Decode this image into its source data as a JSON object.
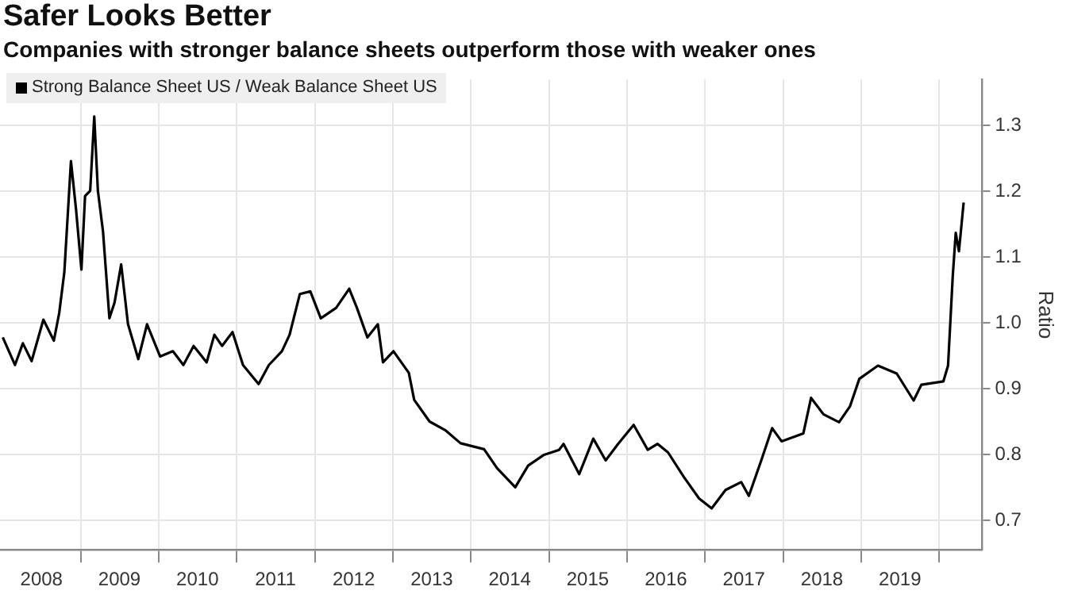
{
  "chart_data": {
    "type": "line",
    "title": "Safer Looks Better",
    "subtitle": "Companies with stronger balance sheets outperform those with weaker ones",
    "ylabel": "Ratio",
    "legend": "top left",
    "grid": true,
    "marker": "none",
    "line_style": "solid",
    "xlim": [
      "2007-12-20",
      "2020-07-20"
    ],
    "ylim": [
      0.655,
      1.37
    ],
    "yticks": [
      {
        "value": 0.7,
        "label": "0.7"
      },
      {
        "value": 0.8,
        "label": "0.8"
      },
      {
        "value": 0.9,
        "label": "0.9"
      },
      {
        "value": 1.0,
        "label": "1.0"
      },
      {
        "value": 1.1,
        "label": "1.1"
      },
      {
        "value": 1.2,
        "label": "1.2"
      },
      {
        "value": 1.3,
        "label": "1.3"
      }
    ],
    "xticks": [
      {
        "value": "2008-07-01",
        "label": "2008"
      },
      {
        "value": "2009-01-01",
        "label": null
      },
      {
        "value": "2009-07-01",
        "label": "2009"
      },
      {
        "value": "2010-01-01",
        "label": null
      },
      {
        "value": "2010-07-01",
        "label": "2010"
      },
      {
        "value": "2011-01-01",
        "label": null
      },
      {
        "value": "2011-07-01",
        "label": "2011"
      },
      {
        "value": "2012-01-01",
        "label": null
      },
      {
        "value": "2012-07-01",
        "label": "2012"
      },
      {
        "value": "2013-01-01",
        "label": null
      },
      {
        "value": "2013-07-01",
        "label": "2013"
      },
      {
        "value": "2014-01-01",
        "label": null
      },
      {
        "value": "2014-07-01",
        "label": "2014"
      },
      {
        "value": "2015-01-01",
        "label": null
      },
      {
        "value": "2015-07-01",
        "label": "2015"
      },
      {
        "value": "2016-01-01",
        "label": null
      },
      {
        "value": "2016-07-01",
        "label": "2016"
      },
      {
        "value": "2017-01-01",
        "label": null
      },
      {
        "value": "2017-07-01",
        "label": "2017"
      },
      {
        "value": "2018-01-01",
        "label": null
      },
      {
        "value": "2018-07-01",
        "label": "2018"
      },
      {
        "value": "2019-01-01",
        "label": null
      },
      {
        "value": "2019-07-01",
        "label": "2019"
      },
      {
        "value": "2020-01-01",
        "label": null
      }
    ],
    "series": [
      {
        "name": "Strong Balance Sheet US / Weak Balance Sheet US",
        "color": "#000000",
        "x": [
          "2008-01-02",
          "2008-02-28",
          "2008-04-05",
          "2008-05-16",
          "2008-07-10",
          "2008-08-28",
          "2008-09-22",
          "2008-10-16",
          "2008-11-16",
          "2008-12-10",
          "2009-01-04",
          "2009-01-21",
          "2009-02-14",
          "2009-03-05",
          "2009-03-22",
          "2009-04-15",
          "2009-05-15",
          "2009-06-08",
          "2009-07-09",
          "2009-08-10",
          "2009-09-27",
          "2009-11-07",
          "2010-01-07",
          "2010-03-08",
          "2010-04-26",
          "2010-06-13",
          "2010-08-13",
          "2010-09-18",
          "2010-10-24",
          "2010-12-12",
          "2011-01-30",
          "2011-04-13",
          "2011-05-31",
          "2011-07-31",
          "2011-09-05",
          "2011-10-23",
          "2011-12-11",
          "2012-01-29",
          "2012-04-10",
          "2012-06-10",
          "2012-07-16",
          "2012-09-03",
          "2012-10-22",
          "2012-11-15",
          "2013-01-03",
          "2013-03-16",
          "2013-04-10",
          "2013-06-21",
          "2013-09-02",
          "2013-11-13",
          "2014-03-03",
          "2014-05-03",
          "2014-07-27",
          "2014-09-25",
          "2014-12-06",
          "2015-02-17",
          "2015-03-10",
          "2015-05-22",
          "2015-07-27",
          "2015-09-23",
          "2015-11-20",
          "2016-02-01",
          "2016-04-07",
          "2016-05-23",
          "2016-07-11",
          "2016-09-22",
          "2016-12-03",
          "2017-01-31",
          "2017-04-06",
          "2017-06-18",
          "2017-07-24",
          "2017-09-20",
          "2017-11-10",
          "2017-12-24",
          "2018-04-05",
          "2018-05-11",
          "2018-07-08",
          "2018-09-19",
          "2018-11-09",
          "2018-12-23",
          "2019-03-20",
          "2019-06-16",
          "2019-09-03",
          "2019-10-09",
          "2020-01-20",
          "2020-02-11",
          "2020-03-04",
          "2020-03-18",
          "2020-04-02",
          "2020-04-24"
        ],
        "values": [
          0.978,
          0.936,
          0.969,
          0.942,
          1.005,
          0.973,
          1.015,
          1.077,
          1.246,
          1.172,
          1.081,
          1.193,
          1.201,
          1.314,
          1.201,
          1.139,
          1.007,
          1.031,
          1.089,
          0.998,
          0.945,
          0.998,
          0.949,
          0.957,
          0.936,
          0.965,
          0.94,
          0.982,
          0.965,
          0.986,
          0.936,
          0.907,
          0.936,
          0.957,
          0.982,
          1.044,
          1.048,
          1.007,
          1.023,
          1.052,
          1.023,
          0.978,
          0.998,
          0.94,
          0.957,
          0.924,
          0.883,
          0.85,
          0.837,
          0.817,
          0.808,
          0.779,
          0.75,
          0.783,
          0.799,
          0.807,
          0.816,
          0.77,
          0.824,
          0.791,
          0.816,
          0.845,
          0.807,
          0.816,
          0.803,
          0.766,
          0.733,
          0.718,
          0.746,
          0.758,
          0.737,
          0.791,
          0.84,
          0.82,
          0.832,
          0.886,
          0.861,
          0.849,
          0.873,
          0.915,
          0.935,
          0.923,
          0.882,
          0.906,
          0.911,
          0.935,
          1.071,
          1.137,
          1.109,
          1.183
        ]
      }
    ]
  }
}
